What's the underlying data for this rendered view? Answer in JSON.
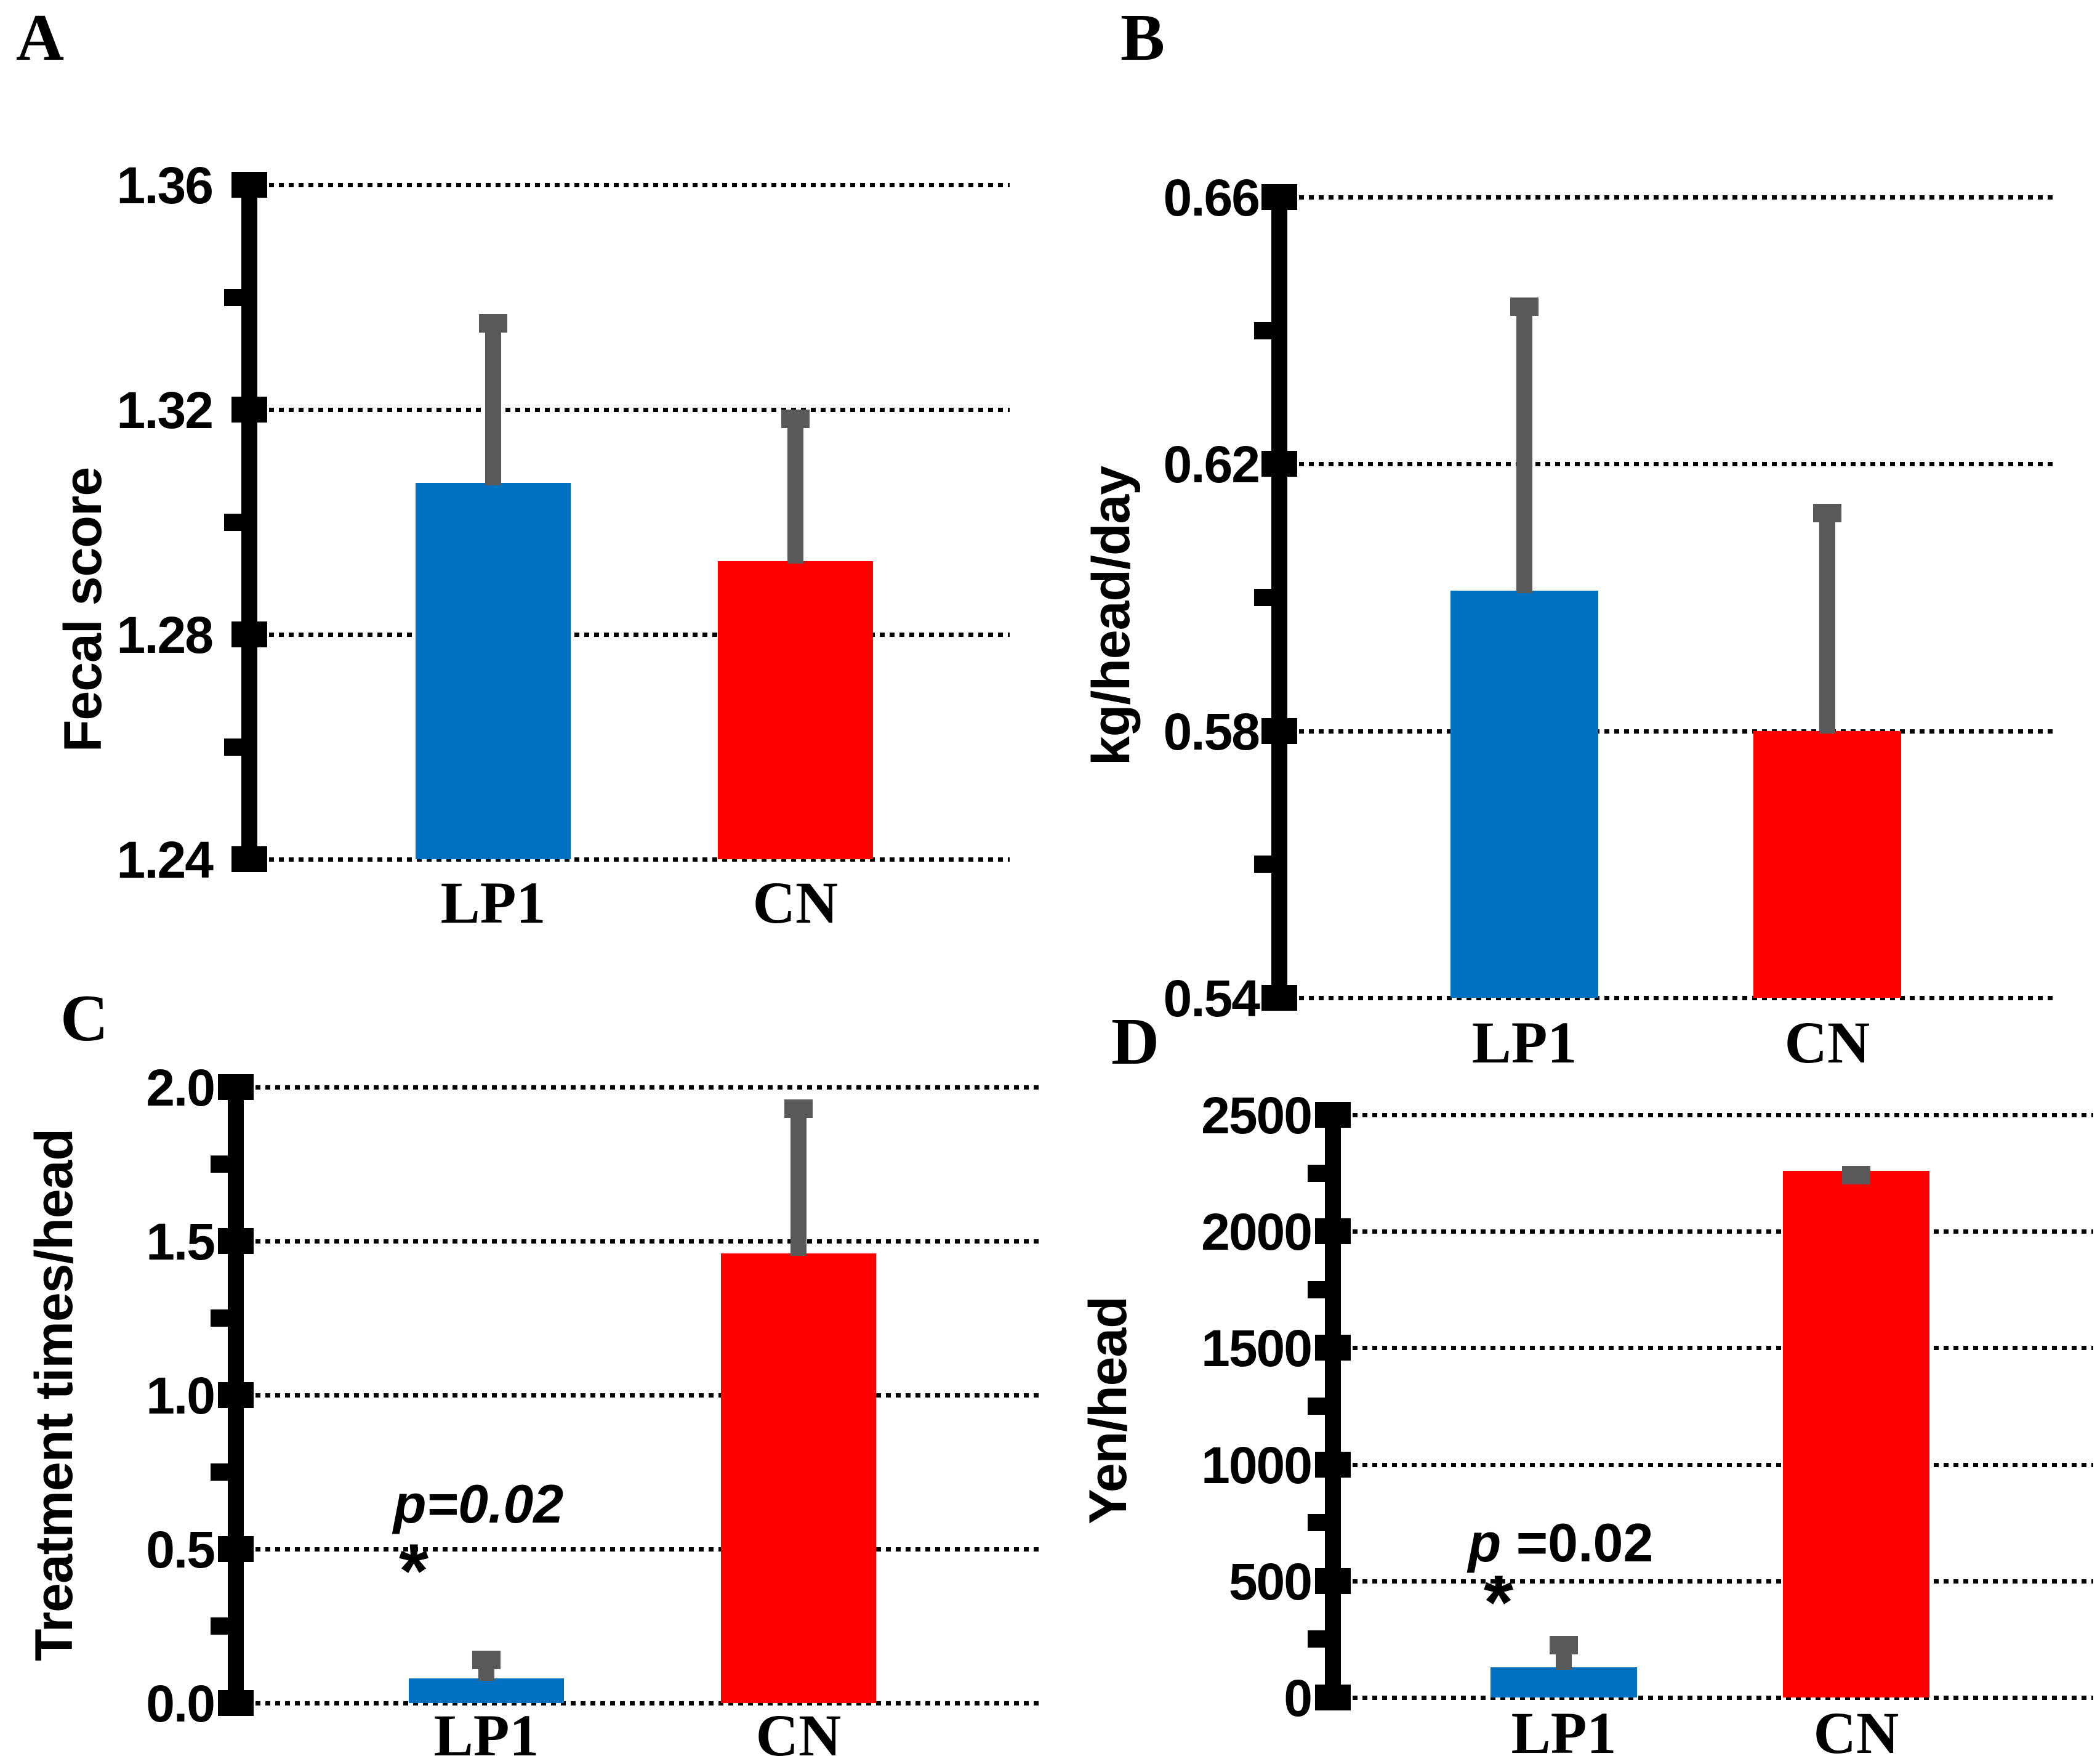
{
  "figure": {
    "background": "#FFFFFF",
    "groups": [
      "LP1",
      "CN"
    ],
    "colors": {
      "lp1_bar": "#0070C0",
      "cn_bar": "#FF0000",
      "error_bar": "#595959",
      "axis": "#000000",
      "gridline": "#000000",
      "text": "#000000"
    }
  },
  "chart_data": [
    {
      "panel_label": "A",
      "type": "bar",
      "categories": [
        "LP1",
        "CN"
      ],
      "values": [
        1.307,
        1.293
      ],
      "error_plus": [
        0.03,
        0.027
      ],
      "title": "",
      "xlabel": "",
      "ylabel": "Fecal score",
      "ylim": [
        1.24,
        1.36
      ],
      "yticks": [
        1.24,
        1.28,
        1.32,
        1.36
      ],
      "ytick_labels": [
        "1.24",
        "1.28",
        "1.32",
        "1.36"
      ],
      "minor_yticks": [
        1.26,
        1.3,
        1.34
      ],
      "grid": "dotted-horizontal",
      "legend": "none",
      "bar_colors": [
        "#0070C0",
        "#FF0000"
      ],
      "annotation": null
    },
    {
      "panel_label": "B",
      "type": "bar",
      "categories": [
        "LP1",
        "CN"
      ],
      "values": [
        0.601,
        0.58
      ],
      "error_plus": [
        0.044,
        0.034
      ],
      "title": "",
      "xlabel": "",
      "ylabel": "kg/head/day",
      "ylim": [
        0.54,
        0.66
      ],
      "yticks": [
        0.54,
        0.58,
        0.62,
        0.66
      ],
      "ytick_labels": [
        "0.54",
        "0.58",
        "0.62",
        "0.66"
      ],
      "minor_yticks": [
        0.56,
        0.6,
        0.64
      ],
      "grid": "dotted-horizontal",
      "legend": "none",
      "bar_colors": [
        "#0070C0",
        "#FF0000"
      ],
      "annotation": null
    },
    {
      "panel_label": "C",
      "type": "bar",
      "categories": [
        "LP1",
        "CN"
      ],
      "values": [
        0.08,
        1.46
      ],
      "error_plus": [
        0.09,
        0.5
      ],
      "title": "",
      "xlabel": "",
      "ylabel": "Treatment times/head",
      "ylim": [
        0.0,
        2.0
      ],
      "yticks": [
        0.0,
        0.5,
        1.0,
        1.5,
        2.0
      ],
      "ytick_labels": [
        "0.0",
        "0.5",
        "1.0",
        "1.5",
        "2.0"
      ],
      "minor_yticks": [
        0.25,
        0.75,
        1.25,
        1.75
      ],
      "grid": "dotted-horizontal",
      "legend": "none",
      "bar_colors": [
        "#0070C0",
        "#FF0000"
      ],
      "annotation": {
        "p": "p",
        "rest": "=0.02",
        "significance_marker": "*",
        "applies_to": "LP1"
      }
    },
    {
      "panel_label": "D",
      "type": "bar",
      "categories": [
        "LP1",
        "CN"
      ],
      "values": [
        130,
        2260
      ],
      "error_plus": [
        135,
        20
      ],
      "title": "",
      "xlabel": "",
      "ylabel": "Yen/head",
      "ylim": [
        0,
        2500
      ],
      "yticks": [
        0,
        500,
        1000,
        1500,
        2000,
        2500
      ],
      "ytick_labels": [
        "0",
        "500",
        "1000",
        "1500",
        "2000",
        "2500"
      ],
      "minor_yticks": [
        250,
        750,
        1250,
        1750,
        2250
      ],
      "grid": "dotted-horizontal",
      "legend": "none",
      "bar_colors": [
        "#0070C0",
        "#FF0000"
      ],
      "annotation": {
        "p": "p",
        "rest": " =0.02",
        "significance_marker": "*",
        "applies_to": "LP1"
      }
    }
  ]
}
